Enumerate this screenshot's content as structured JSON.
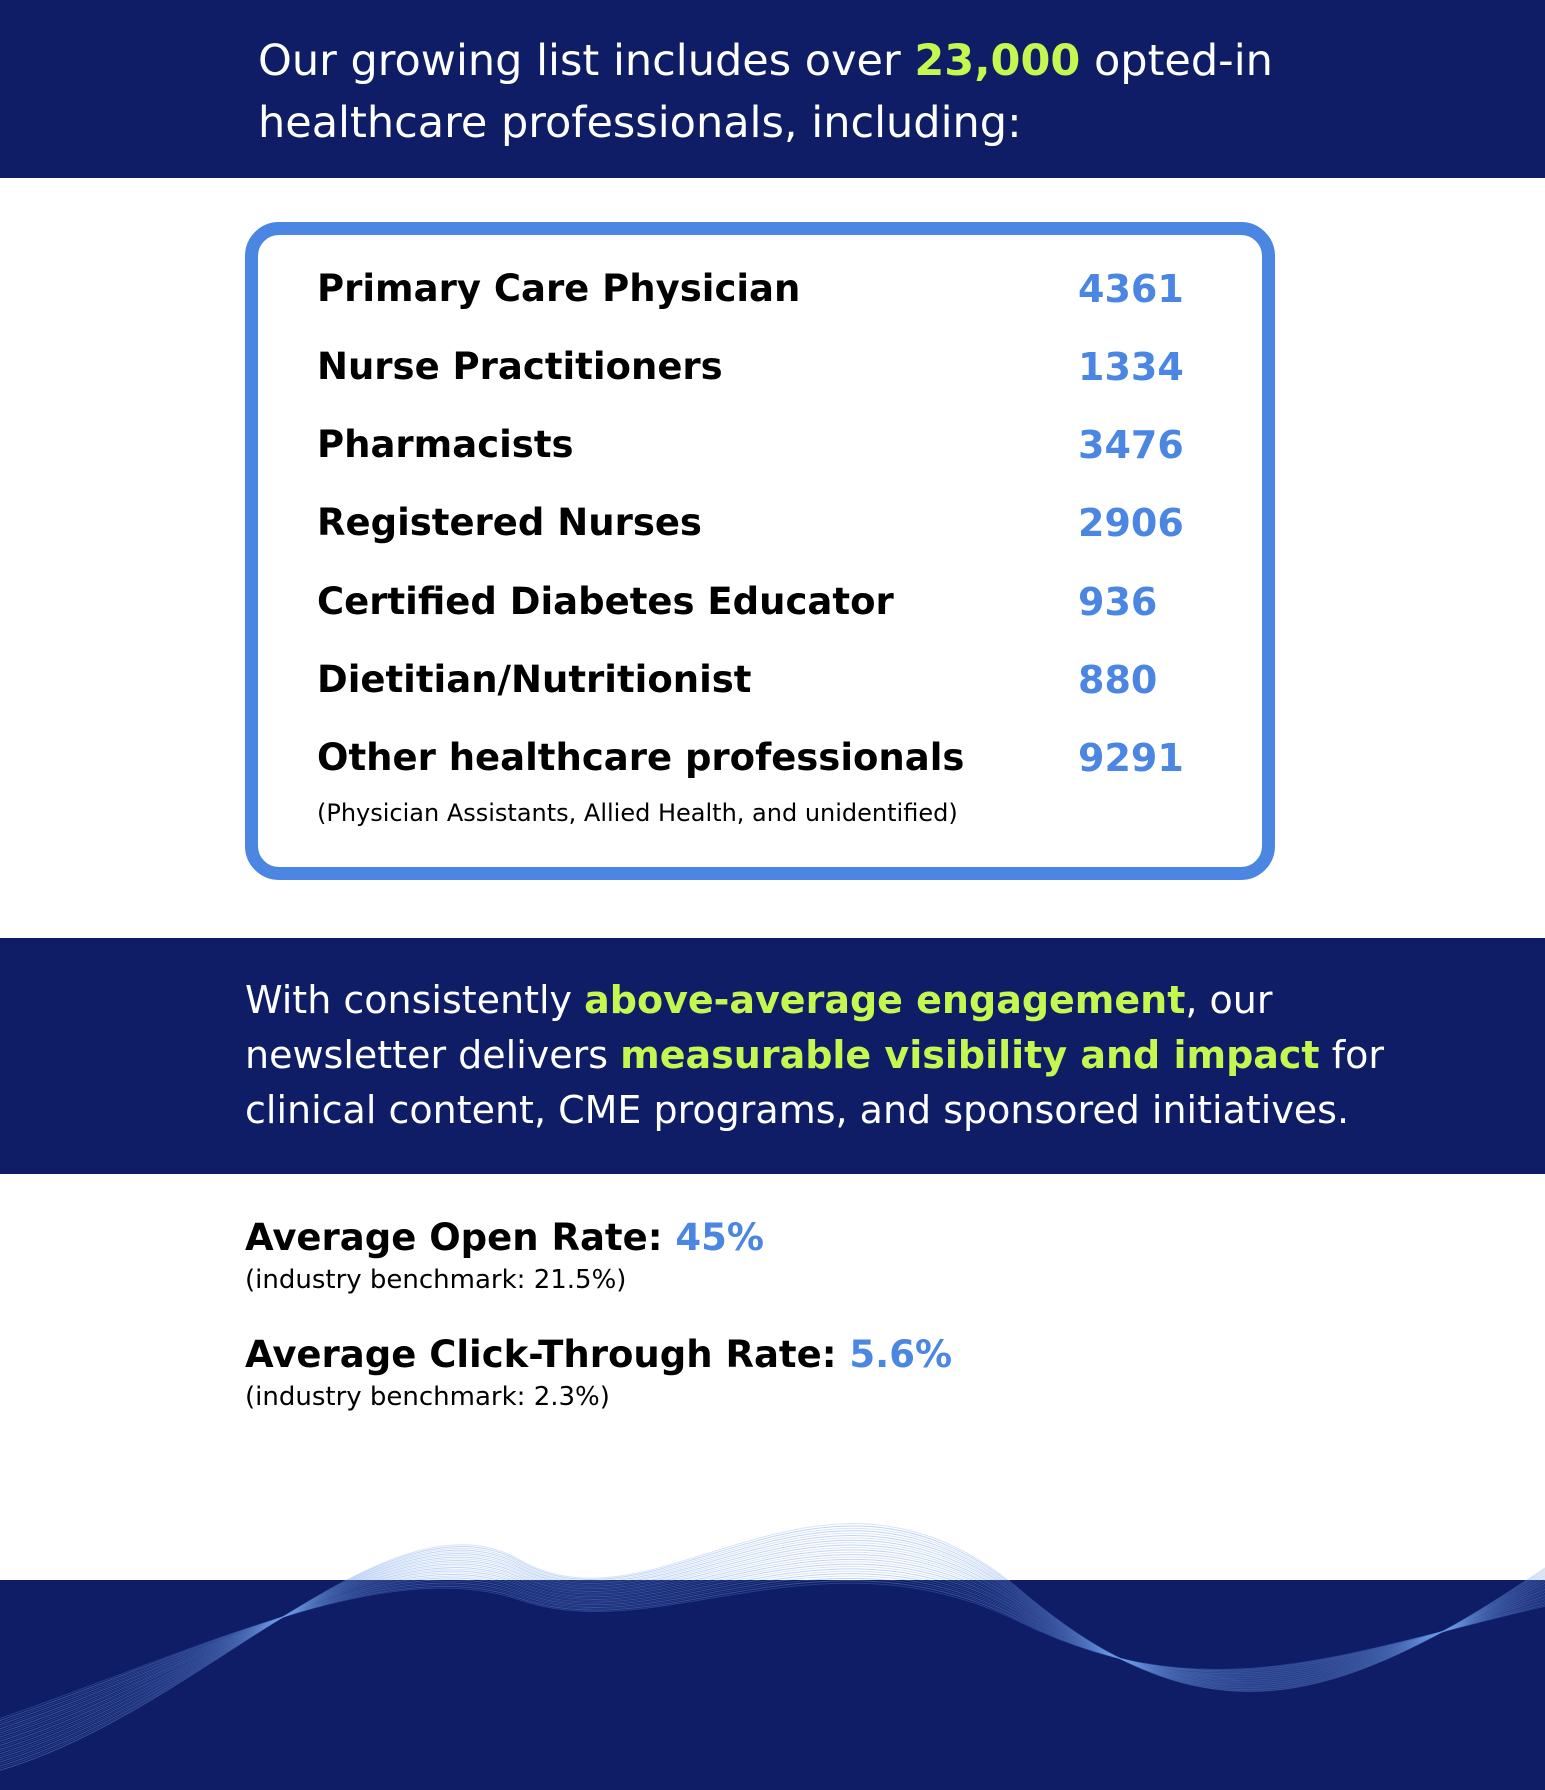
{
  "intro": {
    "before": "Our growing list includes over ",
    "highlight": "23,000",
    "after": " opted-in healthcare professionals, including:"
  },
  "professions": [
    {
      "label": "Primary Care Physician",
      "value": "4361"
    },
    {
      "label": "Nurse Practitioners",
      "value": "1334"
    },
    {
      "label": "Pharmacists",
      "value": "3476"
    },
    {
      "label": "Registered Nurses",
      "value": "2906"
    },
    {
      "label": "Certified Diabetes Educator",
      "value": "936"
    },
    {
      "label": "Dietitian/Nutritionist",
      "value": "880"
    },
    {
      "label": "Other healthcare professionals",
      "value": "9291"
    }
  ],
  "professions_note": "(Physician Assistants, Allied Health, and unidentified)",
  "engagement": {
    "part1": "With consistently ",
    "highlight1": "above-average engagement",
    "part2": ", our newsletter delivers ",
    "highlight2": "measurable visibility and impact",
    "part3": " for clinical content, CME programs, and sponsored initiatives."
  },
  "stats": {
    "open_rate": {
      "label": "Average Open Rate: ",
      "value": "45%",
      "note": "(industry benchmark: 21.5%)"
    },
    "ctr": {
      "label": "Average Click-Through Rate: ",
      "value": "5.6%",
      "note": "(industry benchmark: 2.3%)"
    }
  },
  "colors": {
    "navy": "#0f1d66",
    "accent_green": "#c6f650",
    "accent_blue": "#4a86e2"
  }
}
